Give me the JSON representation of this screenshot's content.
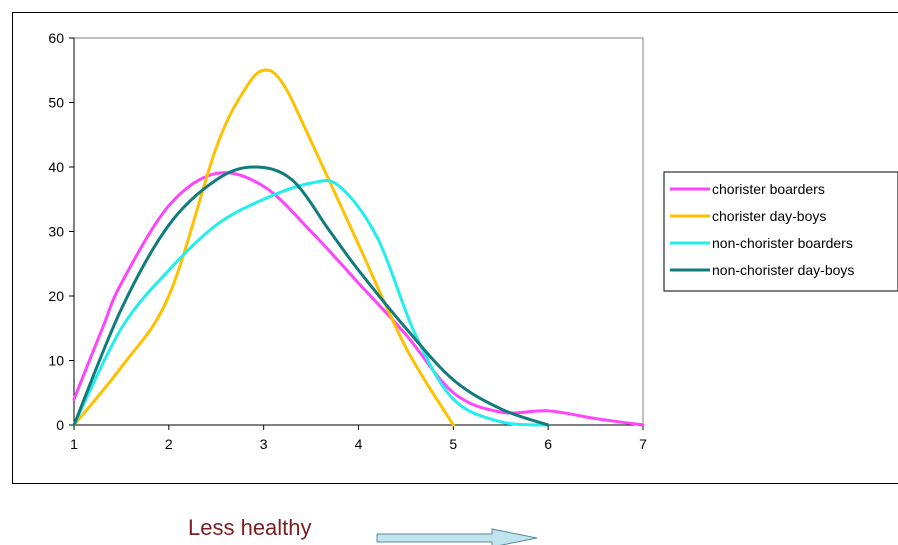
{
  "chart_data": {
    "type": "line",
    "title": "",
    "xlabel": "",
    "ylabel": "",
    "xlim": [
      1,
      7
    ],
    "ylim": [
      0,
      60
    ],
    "x_ticks": [
      1,
      2,
      3,
      4,
      5,
      6,
      7
    ],
    "y_ticks": [
      0,
      10,
      20,
      30,
      40,
      50,
      60
    ],
    "grid": false,
    "legend_position": "right",
    "series": [
      {
        "name": "chorister boarders",
        "color": "#ff44ff",
        "points": [
          [
            1,
            4
          ],
          [
            1.3,
            15
          ],
          [
            1.5,
            22
          ],
          [
            2,
            34
          ],
          [
            2.5,
            39
          ],
          [
            3,
            37
          ],
          [
            3.5,
            30
          ],
          [
            4,
            22
          ],
          [
            4.5,
            14
          ],
          [
            5,
            5
          ],
          [
            5.5,
            2
          ],
          [
            6,
            2.2
          ],
          [
            6.5,
            1
          ],
          [
            7,
            0
          ]
        ]
      },
      {
        "name": "chorister day-boys",
        "color": "#ffc000",
        "points": [
          [
            1,
            0
          ],
          [
            1.5,
            9
          ],
          [
            2,
            20
          ],
          [
            2.5,
            43
          ],
          [
            2.8,
            52
          ],
          [
            3,
            55
          ],
          [
            3.2,
            53
          ],
          [
            3.5,
            44
          ],
          [
            4,
            28
          ],
          [
            4.5,
            12
          ],
          [
            5,
            0
          ]
        ]
      },
      {
        "name": "non-chorister boarders",
        "color": "#22eeee",
        "points": [
          [
            1,
            0
          ],
          [
            1.5,
            15
          ],
          [
            2,
            24
          ],
          [
            2.5,
            31
          ],
          [
            3,
            35
          ],
          [
            3.5,
            37.5
          ],
          [
            3.8,
            37
          ],
          [
            4.2,
            29
          ],
          [
            4.6,
            14
          ],
          [
            5,
            4
          ],
          [
            5.5,
            0.5
          ],
          [
            6,
            0
          ]
        ]
      },
      {
        "name": "non-chorister day-boys",
        "color": "#127c7c",
        "points": [
          [
            1,
            0
          ],
          [
            1.5,
            18
          ],
          [
            2,
            31
          ],
          [
            2.5,
            38
          ],
          [
            2.9,
            40
          ],
          [
            3.3,
            38
          ],
          [
            3.7,
            30
          ],
          [
            4,
            24
          ],
          [
            4.5,
            15
          ],
          [
            5,
            7
          ],
          [
            5.5,
            2.5
          ],
          [
            6,
            0
          ]
        ]
      }
    ],
    "annotation": "Less healthy"
  }
}
